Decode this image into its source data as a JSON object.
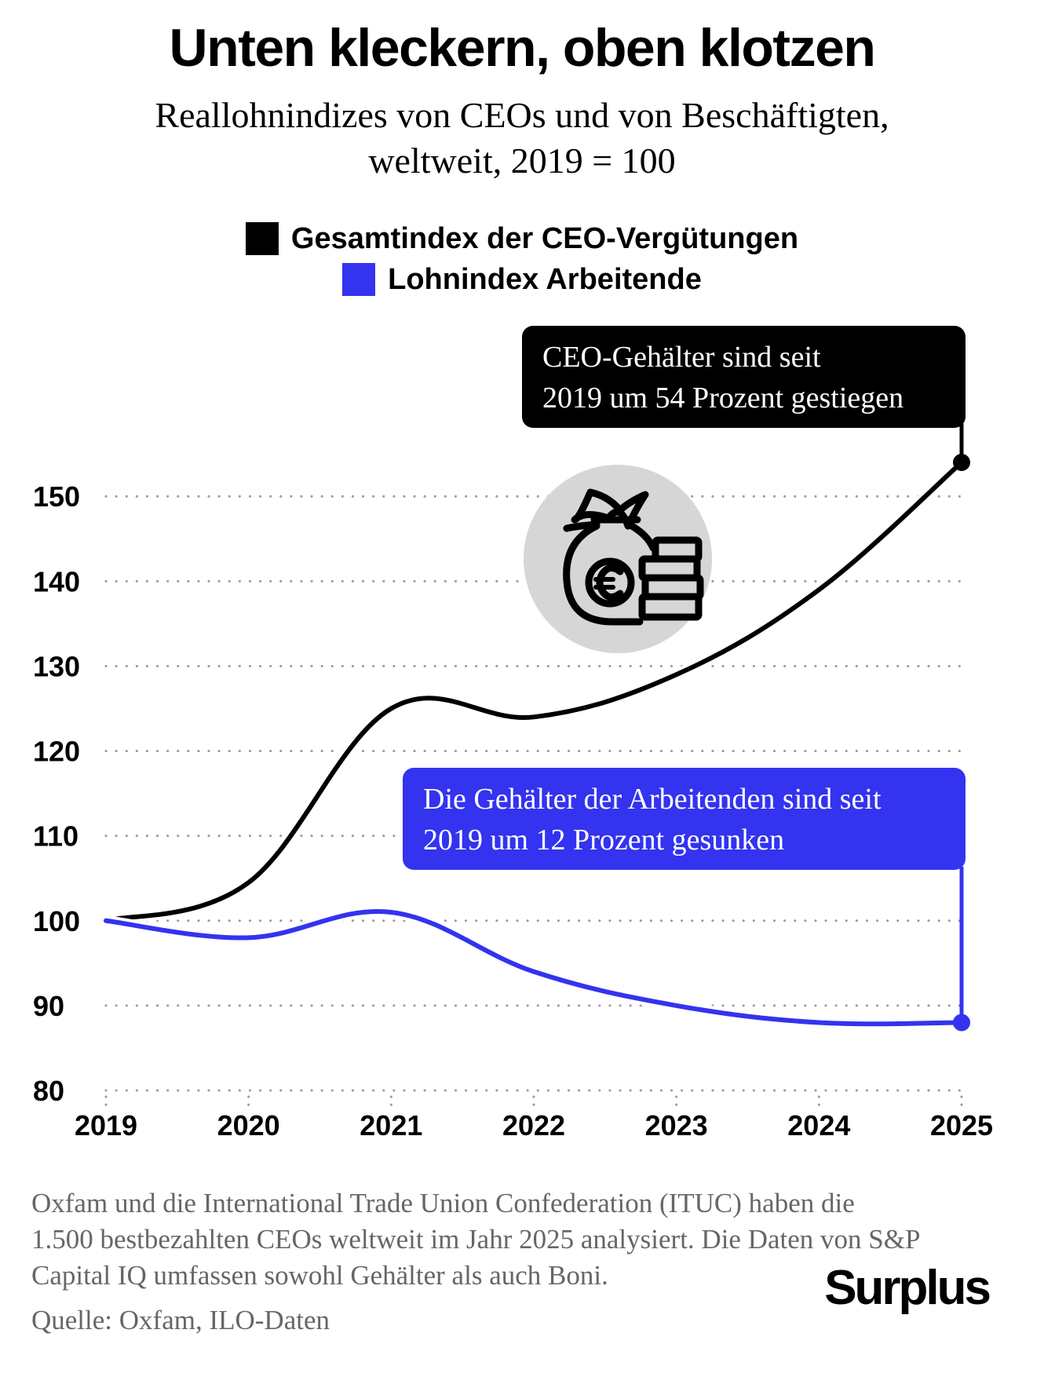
{
  "header": {
    "title": "Unten kleckern, oben klotzen",
    "subtitle_line1": "Reallohnindizes von CEOs und von Beschäftigten,",
    "subtitle_line2": "weltweit, 2019 = 100"
  },
  "callouts": {
    "ceo_line1": "CEO-Gehälter sind seit",
    "ceo_line2": "2019 um 54 Prozent gestiegen",
    "workers_line1": "Die Gehälter der Arbeitenden sind seit",
    "workers_line2": "2019 um 12 Prozent gesunken"
  },
  "icon": {
    "name": "money-bag-euro-coins-icon",
    "circle_color": "#d6d6d6"
  },
  "footer": {
    "note_line1": "Oxfam und die International Trade Union Confederation (ITUC) haben die",
    "note_line2": "1.500 bestbezahlten CEOs weltweit im Jahr 2025 analysiert. Die Daten von S&P",
    "note_line3": "Capital IQ umfassen sowohl Gehälter als auch Boni.",
    "source": "Quelle: Oxfam, ILO-Daten",
    "brand": "Surplus"
  },
  "colors": {
    "ceo": "#000000",
    "workers": "#3333f0",
    "grid": "#999999"
  },
  "chart_data": {
    "type": "line",
    "title": "Unten kleckern, oben klotzen",
    "subtitle": "Reallohnindizes von CEOs und von Beschäftigten, weltweit, 2019 = 100",
    "x": [
      2019,
      2020,
      2021,
      2022,
      2023,
      2024,
      2025
    ],
    "x_ticks": [
      "2019",
      "2020",
      "2021",
      "2022",
      "2023",
      "2024",
      "2025"
    ],
    "y_ticks": [
      80,
      90,
      100,
      110,
      120,
      130,
      140,
      150
    ],
    "ylim": [
      80,
      154
    ],
    "grid": "horizontal dotted",
    "legend_position": "top-center",
    "series": [
      {
        "name": "Gesamtindex der CEO-Vergütungen",
        "color": "#000000",
        "values": [
          100,
          104.5,
          125,
          124,
          129,
          139,
          154
        ]
      },
      {
        "name": "Lohnindex Arbeitende",
        "color": "#3333f0",
        "values": [
          100,
          98,
          101,
          94,
          90,
          88,
          88
        ]
      }
    ]
  }
}
